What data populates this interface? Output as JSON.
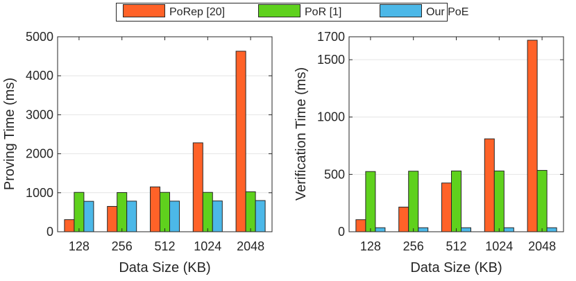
{
  "legend": [
    {
      "label": "PoRep [20]",
      "color": "#ff6228"
    },
    {
      "label": "PoR [1]",
      "color": "#5fd11d"
    },
    {
      "label": "Our PoE",
      "color": "#4cb8e8"
    }
  ],
  "chart_data": [
    {
      "type": "bar",
      "title": "",
      "xlabel": "Data Size (KB)",
      "ylabel": "Proving Time (ms)",
      "categories": [
        "128",
        "256",
        "512",
        "1024",
        "2048"
      ],
      "ylim": [
        0,
        5000
      ],
      "yticks": [
        0,
        1000,
        2000,
        3000,
        4000,
        5000
      ],
      "grid": true,
      "series": [
        {
          "name": "PoRep [20]",
          "color": "#ff6228",
          "values": [
            310,
            650,
            1150,
            2280,
            4630
          ]
        },
        {
          "name": "PoR [1]",
          "color": "#5fd11d",
          "values": [
            1010,
            1005,
            1010,
            1010,
            1025
          ]
        },
        {
          "name": "Our PoE",
          "color": "#4cb8e8",
          "values": [
            780,
            785,
            785,
            790,
            800
          ]
        }
      ]
    },
    {
      "type": "bar",
      "title": "",
      "xlabel": "Data Size (KB)",
      "ylabel": "Verification Time (ms)",
      "categories": [
        "128",
        "256",
        "512",
        "1024",
        "2048"
      ],
      "ylim": [
        0,
        1700
      ],
      "yticks": [
        0,
        500,
        1000,
        1500,
        1700
      ],
      "grid": true,
      "series": [
        {
          "name": "PoRep [20]",
          "color": "#ff6228",
          "values": [
            105,
            215,
            425,
            810,
            1670
          ]
        },
        {
          "name": "PoR [1]",
          "color": "#5fd11d",
          "values": [
            525,
            528,
            530,
            530,
            535
          ]
        },
        {
          "name": "Our PoE",
          "color": "#4cb8e8",
          "values": [
            35,
            35,
            35,
            35,
            35
          ]
        }
      ]
    }
  ]
}
